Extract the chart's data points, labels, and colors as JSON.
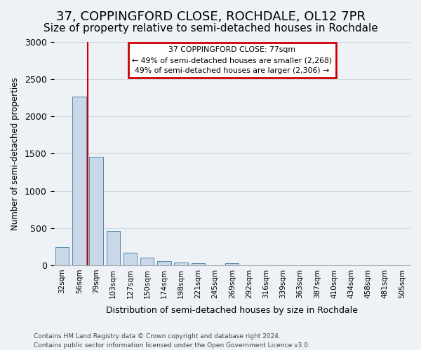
{
  "title": "37, COPPINGFORD CLOSE, ROCHDALE, OL12 7PR",
  "subtitle": "Size of property relative to semi-detached houses in Rochdale",
  "xlabel": "Distribution of semi-detached houses by size in Rochdale",
  "ylabel": "Number of semi-detached properties",
  "bar_labels": [
    "32sqm",
    "56sqm",
    "79sqm",
    "103sqm",
    "127sqm",
    "150sqm",
    "174sqm",
    "198sqm",
    "221sqm",
    "245sqm",
    "269sqm",
    "292sqm",
    "316sqm",
    "339sqm",
    "363sqm",
    "387sqm",
    "410sqm",
    "434sqm",
    "458sqm",
    "481sqm",
    "505sqm"
  ],
  "bar_values": [
    240,
    2270,
    1460,
    460,
    165,
    100,
    55,
    40,
    30,
    0,
    30,
    0,
    0,
    0,
    0,
    0,
    0,
    0,
    0,
    0,
    0
  ],
  "bar_color": "#c8d8e8",
  "bar_edge_color": "#5588aa",
  "ylim": [
    0,
    3000
  ],
  "yticks": [
    0,
    500,
    1000,
    1500,
    2000,
    2500,
    3000
  ],
  "property_line_x": 1.5,
  "property_label": "37 COPPINGFORD CLOSE: 77sqm",
  "annotation_line1": "← 49% of semi-detached houses are smaller (2,268)",
  "annotation_line2": "49% of semi-detached houses are larger (2,306) →",
  "annotation_box_color": "#ffffff",
  "annotation_box_edge": "#cc0000",
  "footer1": "Contains HM Land Registry data © Crown copyright and database right 2024.",
  "footer2": "Contains public sector information licensed under the Open Government Licence v3.0.",
  "grid_color": "#d0d8e0",
  "background_color": "#eef2f7",
  "plot_background": "#eef2f7",
  "title_fontsize": 13,
  "subtitle_fontsize": 11
}
